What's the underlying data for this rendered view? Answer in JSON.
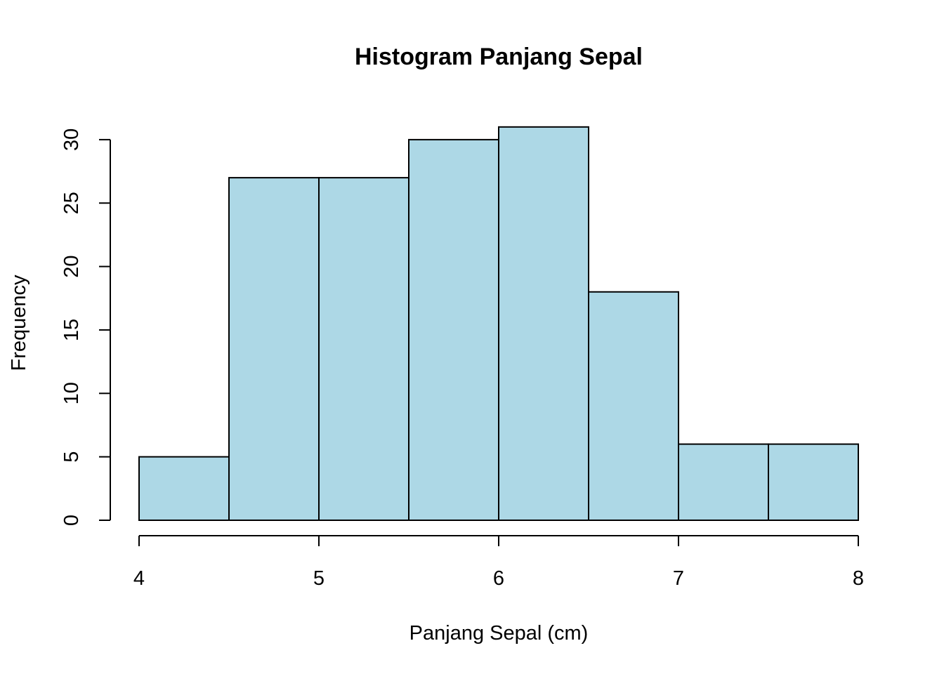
{
  "chart_data": {
    "type": "bar",
    "subtype": "histogram",
    "title": "Histogram Panjang Sepal",
    "xlabel": "Panjang Sepal (cm)",
    "ylabel": "Frequency",
    "bins": [
      {
        "from": 4.0,
        "to": 4.5,
        "count": 5
      },
      {
        "from": 4.5,
        "to": 5.0,
        "count": 27
      },
      {
        "from": 5.0,
        "to": 5.5,
        "count": 27
      },
      {
        "from": 5.5,
        "to": 6.0,
        "count": 30
      },
      {
        "from": 6.0,
        "to": 6.5,
        "count": 31
      },
      {
        "from": 6.5,
        "to": 7.0,
        "count": 18
      },
      {
        "from": 7.0,
        "to": 7.5,
        "count": 6
      },
      {
        "from": 7.5,
        "to": 8.0,
        "count": 6
      }
    ],
    "x_ticks": [
      "4",
      "5",
      "6",
      "7",
      "8"
    ],
    "y_ticks": [
      "0",
      "5",
      "10",
      "15",
      "20",
      "25",
      "30"
    ],
    "xlim": [
      4,
      8
    ],
    "ylim": [
      0,
      30
    ],
    "bar_color": "#add8e6",
    "grid": false
  }
}
